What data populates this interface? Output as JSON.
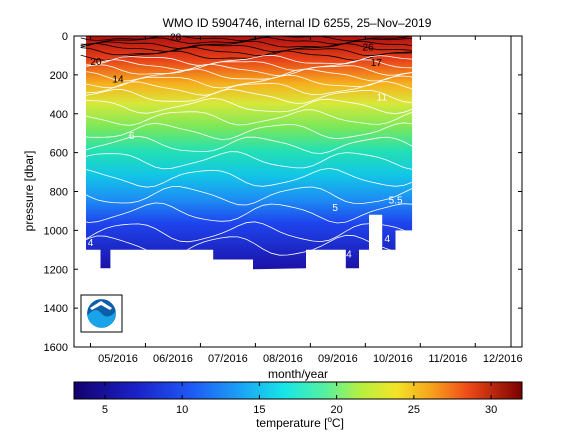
{
  "chart_data": {
    "type": "contour",
    "title": "WMO ID 5904746, internal ID 6255, 25–Nov–2019",
    "xlabel": "month/year",
    "ylabel": "pressure [dbar]",
    "x_tick_labels": [
      "05/2016",
      "06/2016",
      "07/2016",
      "08/2016",
      "09/2016",
      "10/2016",
      "11/2016",
      "12/2016"
    ],
    "x_range_months": [
      4.7,
      12.85
    ],
    "data_x_range_months": [
      4.82,
      10.85
    ],
    "y_ticks": [
      0,
      200,
      400,
      600,
      800,
      1000,
      1200,
      1400,
      1600
    ],
    "ylim": [
      0,
      1600
    ],
    "y_reversed": true,
    "colorbar": {
      "label_prefix": "temperature [",
      "label_unit_sup": "o",
      "label_suffix": "C]",
      "ticks": [
        5,
        10,
        15,
        20,
        25,
        30
      ],
      "range": [
        3,
        32
      ]
    },
    "contour_labels": [
      {
        "text": "28",
        "month": 6.55,
        "pressure": 3
      },
      {
        "text": "20",
        "month": 5.1,
        "pressure": 128
      },
      {
        "text": "14",
        "month": 5.5,
        "pressure": 218
      },
      {
        "text": "26",
        "month": 10.05,
        "pressure": 55
      },
      {
        "text": "17",
        "month": 10.2,
        "pressure": 135
      },
      {
        "text": "11",
        "month": 10.3,
        "pressure": 310
      },
      {
        "text": "6",
        "month": 5.75,
        "pressure": 510
      },
      {
        "text": "5",
        "month": 9.45,
        "pressure": 880
      },
      {
        "text": "5.5",
        "month": 10.55,
        "pressure": 840
      },
      {
        "text": "4",
        "month": 5.0,
        "pressure": 1060
      },
      {
        "text": "4",
        "month": 9.7,
        "pressure": 1120
      },
      {
        "text": "4",
        "month": 10.4,
        "pressure": 1040
      }
    ],
    "logo": "noaa-logo"
  }
}
